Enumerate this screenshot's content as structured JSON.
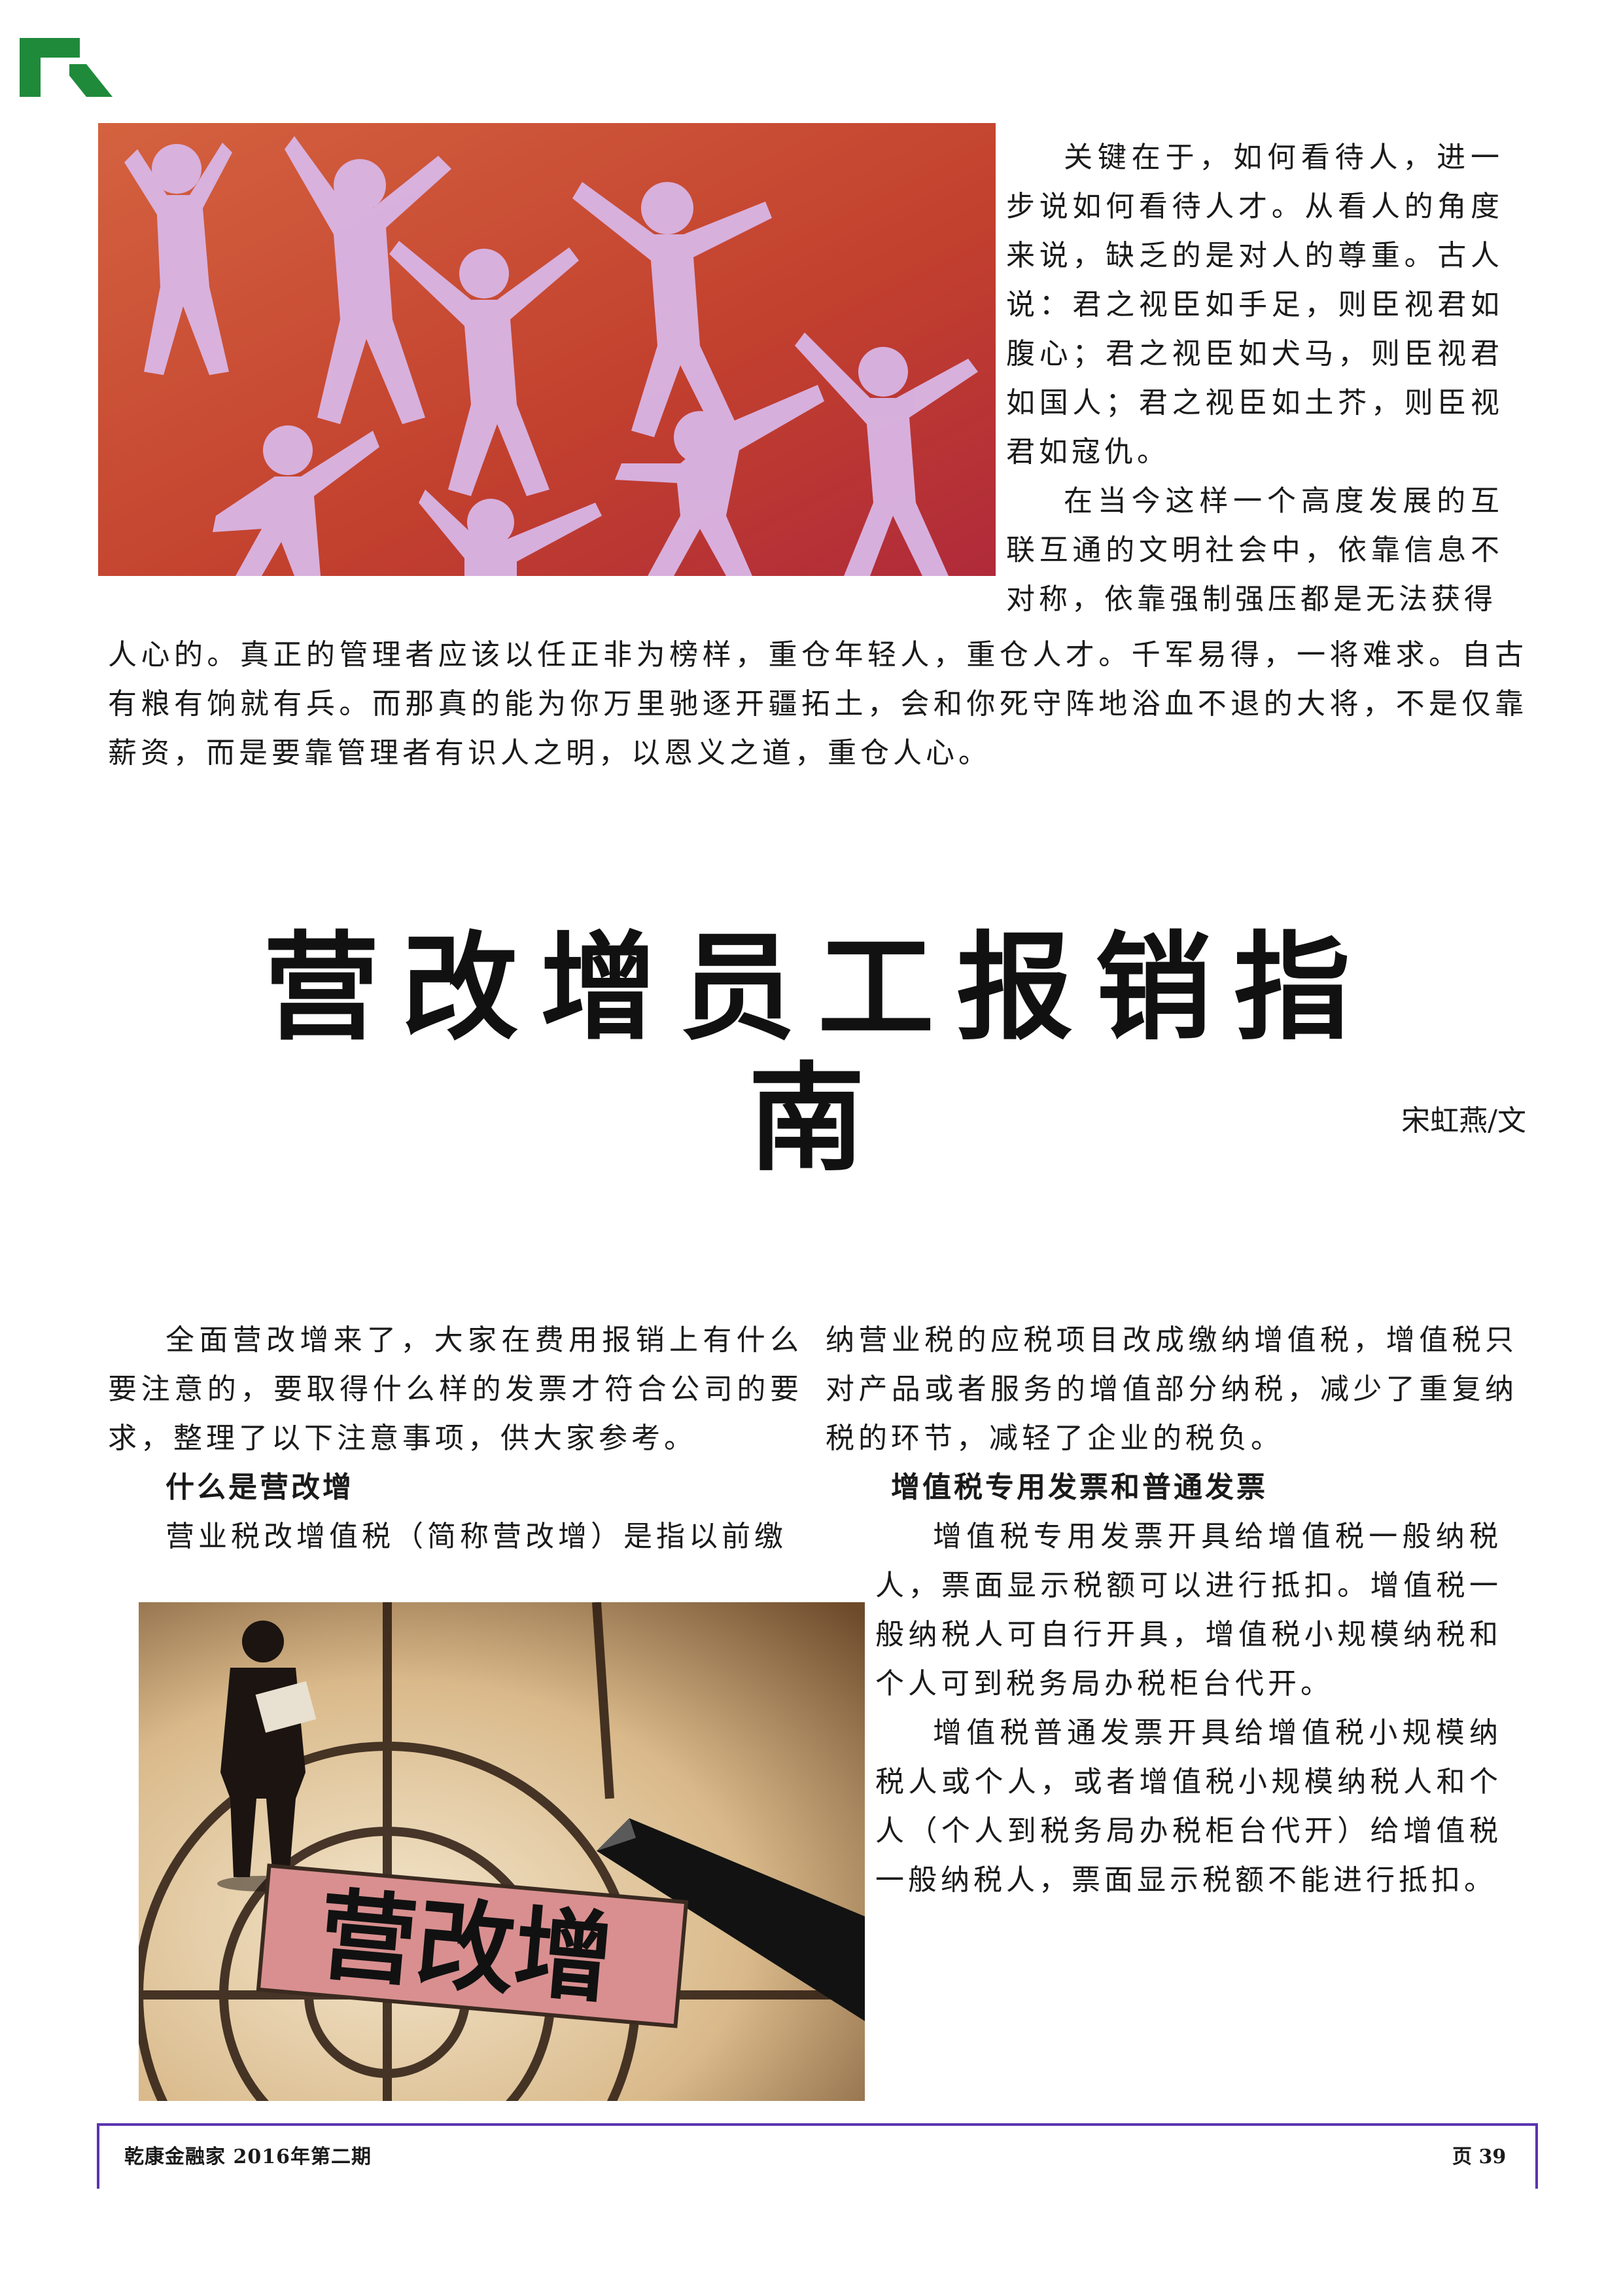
{
  "colors": {
    "logo_green": "#1f8a3a",
    "footer_rule": "#5b34b0",
    "image1_bg": "#c44a33",
    "figures": "#c9a6dc"
  },
  "top_right_column": [
    "关键在于，如何看待人，进一步说如何看待人才。从看人的角度来说，缺乏的是对人的尊重。古人说：君之视臣如手足，则臣视君如腹心；君之视臣如犬马，则臣视君如国人；君之视臣如土芥，则臣视君如寇仇。",
    "在当今这样一个高度发展的互联互通的文明社会中，依靠信息不对称，依靠强制强压都是无法获得"
  ],
  "top_full_width": "人心的。真正的管理者应该以任正非为榜样，重仓年轻人，重仓人才。千军易得，一将难求。自古有粮有饷就有兵。而那真的能为你万里驰逐开疆拓土，会和你死守阵地浴血不退的大将，不是仅靠薪资，而是要靠管理者有识人之明，以恩义之道，重仓人心。",
  "article": {
    "title": "营改增员工报销指南",
    "byline": "宋虹燕/文",
    "left_intro": "全面营改增来了，大家在费用报销上有什么要注意的，要取得什么样的发票才符合公司的要求，整理了以下注意事项，供大家参考。",
    "left_heading": "什么是营改增",
    "left_para": "营业税改增值税（简称营改增）是指以前缴",
    "right_cont": "纳营业税的应税项目改成缴纳增值税，增值税只对产品或者服务的增值部分纳税，减少了重复纳税的环节，减轻了企业的税负。",
    "right_heading": "增值税专用发票和普通发票",
    "right_para1": "增值税专用发票开具给增值税一般纳税人，票面显示税额可以进行抵扣。增值税一般纳税人可自行开具，增值税小规模纳税和个人可到税务局办税柜台代开。",
    "right_para2": "增值税普通发票开具给增值税小规模纳税人或个人，或者增值税小规模纳税人和个人（个人到税务局办税柜台代开）给增值税一般纳税人，票面显示税额不能进行抵扣。",
    "image_label": "营改增"
  },
  "footer": {
    "publication": "乾康金融家 2016年第二期",
    "page": "页 39"
  }
}
